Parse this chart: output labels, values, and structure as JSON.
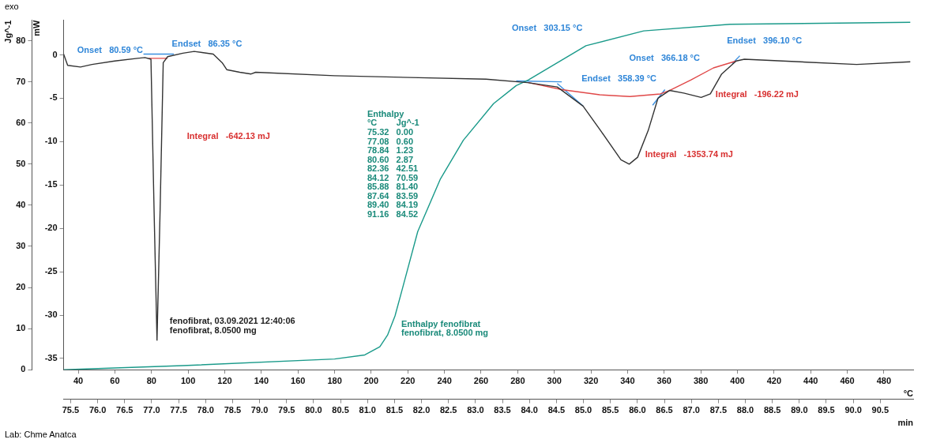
{
  "chart_data": {
    "type": "line",
    "xlabel": "°C",
    "x2label": "min",
    "ylabel": "mW",
    "y2label": "Jg^-1",
    "xlim": [
      32,
      496
    ],
    "xticks": [
      40,
      60,
      80,
      100,
      120,
      140,
      160,
      180,
      200,
      220,
      240,
      260,
      280,
      300,
      320,
      340,
      360,
      380,
      400,
      420,
      440,
      460,
      480
    ],
    "x2lim": [
      75.37,
      91.11
    ],
    "x2ticks": [
      75.5,
      {
        "value": 76,
        "label": "76.0"
      },
      76.5,
      {
        "value": 77,
        "label": "77.0"
      },
      77.5,
      {
        "value": 78,
        "label": "78.0"
      },
      78.5,
      {
        "value": 79,
        "label": "79.0"
      },
      79.5,
      {
        "value": 80,
        "label": "80.0"
      },
      80.5,
      {
        "value": 81,
        "label": "81.0"
      },
      81.5,
      {
        "value": 82,
        "label": "82.0"
      },
      82.5,
      {
        "value": 83,
        "label": "83.0"
      },
      83.5,
      {
        "value": 84,
        "label": "84.0"
      },
      84.5,
      {
        "value": 85,
        "label": "85.0"
      },
      85.5,
      {
        "value": 86,
        "label": "86.0"
      },
      86.5,
      {
        "value": 87,
        "label": "87.0"
      },
      87.5,
      {
        "value": 88,
        "label": "88.0"
      },
      88.5,
      {
        "value": 89,
        "label": "89.0"
      },
      89.5,
      {
        "value": 90,
        "label": "90.0"
      },
      90.5
    ],
    "ylim": [
      -36.3,
      4
    ],
    "yticks": [
      0,
      -5,
      -10,
      -15,
      -20,
      -25,
      -30,
      -35
    ],
    "y2lim": [
      0,
      85
    ],
    "y2ticks": [
      0,
      10,
      20,
      30,
      40,
      50,
      60,
      70,
      80
    ],
    "grid": false,
    "legend": false,
    "marker": "none",
    "line_style": "solid",
    "series": [
      {
        "color": "#333333",
        "x": [
          32,
          34.2,
          41.2,
          47.5,
          59.9,
          72.3,
          76.4,
          79.7,
          81.4,
          83.0,
          84.7,
          86.4,
          88.8,
          97.1,
          103.3,
          113.7,
          118.6,
          121.1,
          128.2,
          134.4,
          136.9,
          179.9,
          221.3,
          262.7,
          285.4,
          301.6,
          315.7,
          325.2,
          336.4,
          340.9,
          345.5,
          351.3,
          356.6,
          362.9,
          370.7,
          380.2,
          385.2,
          391.4,
          399.3,
          403.8,
          465.1,
          494.4
        ],
        "values": [
          0.1,
          -1.2,
          -1.4,
          -1.1,
          -0.7,
          -0.4,
          -0.3,
          -0.5,
          -17.9,
          -32.9,
          -17.9,
          -0.9,
          -0.2,
          0.2,
          0.4,
          0.1,
          -0.9,
          -1.7,
          -2.0,
          -2.2,
          -2.0,
          -2.4,
          -2.6,
          -2.8,
          -3.2,
          -3.7,
          -5.9,
          -8.7,
          -12.1,
          -12.6,
          -11.8,
          -8.7,
          -5.0,
          -4.1,
          -4.4,
          -4.9,
          -4.5,
          -2.2,
          -0.7,
          -0.5,
          -1.1,
          -0.8
        ]
      },
      {
        "color": "#1a9a8a",
        "axis": "y2",
        "x": [
          32,
          97.1,
          180,
          196.5,
          204.7,
          208.9,
          213,
          217.2,
          225.4,
          237.8,
          250.3,
          266.8,
          279.2,
          285.9,
          317.3,
          348.8,
          396,
          494.4
        ],
        "values": [
          0,
          1.0,
          2.6,
          3.6,
          5.6,
          8.4,
          13.1,
          20,
          33.6,
          46.4,
          55.8,
          64.7,
          69.1,
          70.5,
          78.8,
          82.4,
          84,
          84.5
        ]
      },
      {
        "color": "#e04848",
        "x": [
          285.9,
          304.1,
          324.8,
          341.3,
          357.9,
          362.9,
          374.5,
          386.9,
          399.3
        ],
        "values": [
          -3.2,
          -4.0,
          -4.6,
          -4.8,
          -4.5,
          -4.1,
          -2.9,
          -1.5,
          -0.7
        ]
      },
      {
        "color": "#e04848",
        "x": [
          78.5,
          88.8
        ],
        "values": [
          -0.4,
          -0.4
        ]
      },
      {
        "color": "#3a8fe0",
        "x": [
          75.6,
          92.2
        ],
        "values": [
          0.1,
          0.1
        ]
      },
      {
        "color": "#3a8fe0",
        "x": [
          279.2,
          304.1
        ],
        "values": [
          -3.0,
          -3.1
        ]
      },
      {
        "color": "#3a8fe0",
        "x": [
          301.6,
          315.7
        ],
        "values": [
          -3.3,
          -5.9
        ]
      },
      {
        "color": "#3a8fe0",
        "x": [
          353.7,
          360.4
        ],
        "values": [
          -5.8,
          -4.0
        ]
      },
      {
        "color": "#3a8fe0",
        "x": [
          397.2,
          401.3
        ],
        "values": [
          -1.0,
          -0.1
        ]
      }
    ],
    "annotations": [
      "exo",
      "Lab: Chme Anatca",
      "Onset   80.59 °C",
      "Endset   86.35 °C",
      "Integral   -642.13 mJ",
      "Onset   303.15 °C",
      "Endset   358.39 °C",
      "Onset   366.18 °C",
      "Endset   396.10 °C",
      "Integral   -196.22 mJ",
      "Integral   -1353.74 mJ",
      "Enthalpy",
      "°C        Jg^-1",
      "75.32   0.00",
      "77.08   0.60",
      "78.84   1.23",
      "80.60   2.87",
      "82.36   42.51",
      "84.12   70.59",
      "85.88   81.40",
      "87.64   83.59",
      "89.40   84.19",
      "91.16   84.52",
      "fenofibrat, 03.09.2021 12:40:06",
      "fenofibrat, 8.0500 mg",
      "Enthalpy fenofibrat",
      "fenofibrat, 8.0500 mg"
    ]
  }
}
